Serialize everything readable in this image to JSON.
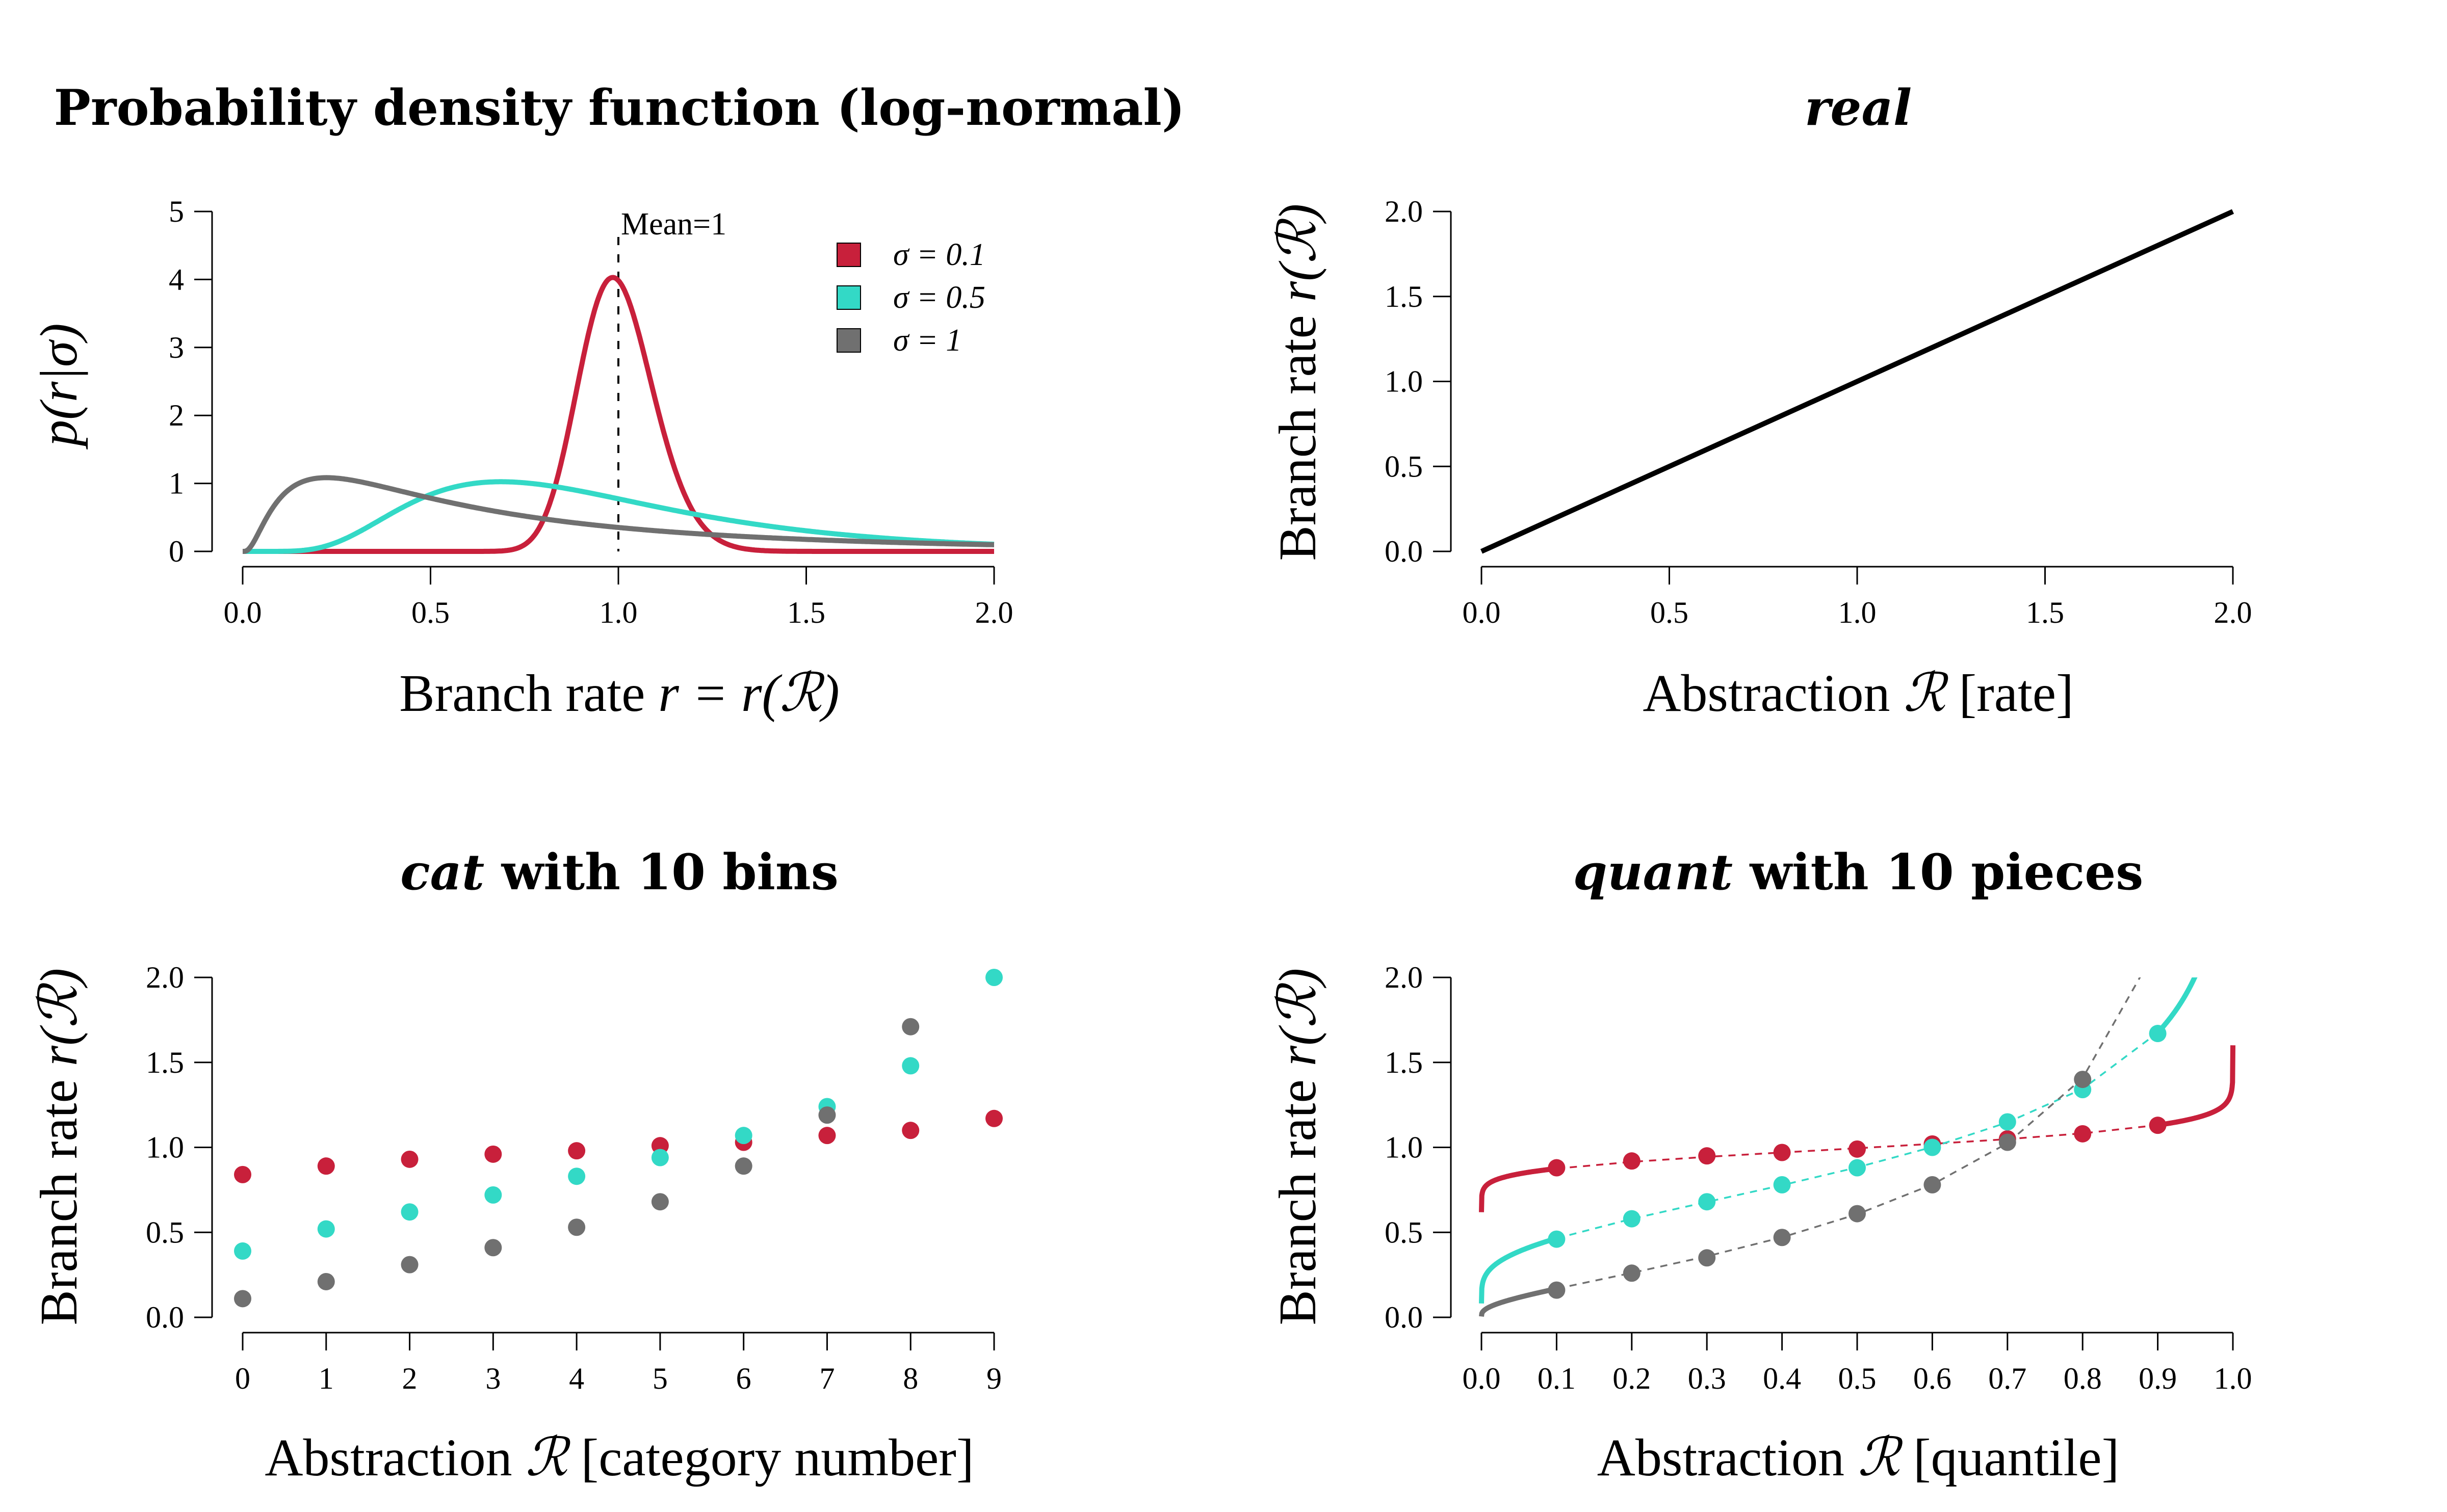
{
  "colors": {
    "red": "#C8203B",
    "teal": "#33D9C6",
    "gray": "#707070",
    "black": "#000000"
  },
  "chart_data": [
    {
      "id": "pdf",
      "type": "line",
      "title": "Probability density function (log-normal)",
      "xlabel_pre": "Branch rate ",
      "xlabel_math": "r = r(ℛ)",
      "ylabel_math": "p(r|σ)",
      "xlim": [
        0,
        2
      ],
      "ylim": [
        0,
        5
      ],
      "xticks": [
        "0.0",
        "0.5",
        "1.0",
        "1.5",
        "2.0"
      ],
      "yticks": [
        "0",
        "1",
        "2",
        "3",
        "4",
        "5"
      ],
      "vline": {
        "x": 1,
        "label": "Mean=1"
      },
      "legend_position": "top-right",
      "series": [
        {
          "name": "σ = 0.1",
          "sigma": 0.1,
          "color_key": "red"
        },
        {
          "name": "σ = 0.5",
          "sigma": 0.5,
          "color_key": "teal"
        },
        {
          "name": "σ = 1",
          "sigma": 1,
          "color_key": "gray"
        }
      ]
    },
    {
      "id": "real",
      "type": "line",
      "title": "real",
      "xlabel_pre": "Abstraction ",
      "xlabel_math": "ℛ",
      "xlabel_post": " [rate]",
      "ylabel_pre": "Branch rate ",
      "ylabel_math": "r(ℛ)",
      "xlim": [
        0,
        2
      ],
      "ylim": [
        0,
        2
      ],
      "xticks": [
        "0.0",
        "0.5",
        "1.0",
        "1.5",
        "2.0"
      ],
      "yticks": [
        "0.0",
        "0.5",
        "1.0",
        "1.5",
        "2.0"
      ],
      "series": [
        {
          "x": [
            0,
            2
          ],
          "y": [
            0,
            2
          ],
          "color_key": "black"
        }
      ]
    },
    {
      "id": "cat",
      "type": "scatter",
      "title_it": "cat",
      "title_rest": " with 10 bins",
      "xlabel_pre": "Abstraction ",
      "xlabel_math": "ℛ",
      "xlabel_post": " [category number]",
      "ylabel_pre": "Branch rate ",
      "ylabel_math": "r(ℛ)",
      "xlim": [
        0,
        9
      ],
      "ylim": [
        0,
        2
      ],
      "xticks": [
        "0",
        "1",
        "2",
        "3",
        "4",
        "5",
        "6",
        "7",
        "8",
        "9"
      ],
      "yticks": [
        "0.0",
        "0.5",
        "1.0",
        "1.5",
        "2.0"
      ],
      "categories": [
        0,
        1,
        2,
        3,
        4,
        5,
        6,
        7,
        8,
        9
      ],
      "series": [
        {
          "color_key": "red",
          "values": [
            0.84,
            0.89,
            0.93,
            0.96,
            0.98,
            1.01,
            1.03,
            1.07,
            1.1,
            1.17
          ]
        },
        {
          "color_key": "teal",
          "values": [
            0.39,
            0.52,
            0.62,
            0.72,
            0.83,
            0.94,
            1.07,
            1.24,
            1.48,
            2.0
          ]
        },
        {
          "color_key": "gray",
          "values": [
            0.11,
            0.21,
            0.31,
            0.41,
            0.53,
            0.68,
            0.89,
            1.19,
            1.71,
            null
          ]
        }
      ]
    },
    {
      "id": "quant",
      "type": "line",
      "title_it": "quant",
      "title_rest": " with 10 pieces",
      "xlabel_pre": "Abstraction ",
      "xlabel_math": "ℛ",
      "xlabel_post": " [quantile]",
      "ylabel_pre": "Branch rate ",
      "ylabel_math": "r(ℛ)",
      "xlim": [
        0,
        1
      ],
      "ylim": [
        0,
        2
      ],
      "xticks": [
        "0.0",
        "0.1",
        "0.2",
        "0.3",
        "0.4",
        "0.5",
        "0.6",
        "0.7",
        "0.8",
        "0.9",
        "1.0"
      ],
      "yticks": [
        "0.0",
        "0.5",
        "1.0",
        "1.5",
        "2.0"
      ],
      "x": [
        0.1,
        0.2,
        0.3,
        0.4,
        0.5,
        0.6,
        0.7,
        0.8,
        0.9
      ],
      "series": [
        {
          "color_key": "red",
          "sigma": 0.1,
          "points": [
            0.88,
            0.92,
            0.95,
            0.97,
            0.99,
            1.02,
            1.05,
            1.08,
            1.13
          ]
        },
        {
          "color_key": "teal",
          "sigma": 0.5,
          "points": [
            0.46,
            0.58,
            0.68,
            0.78,
            0.88,
            1.0,
            1.15,
            1.34,
            1.67
          ]
        },
        {
          "color_key": "gray",
          "sigma": 1,
          "points": [
            0.16,
            0.26,
            0.35,
            0.47,
            0.61,
            0.78,
            1.03,
            1.4,
            null
          ]
        }
      ]
    }
  ]
}
